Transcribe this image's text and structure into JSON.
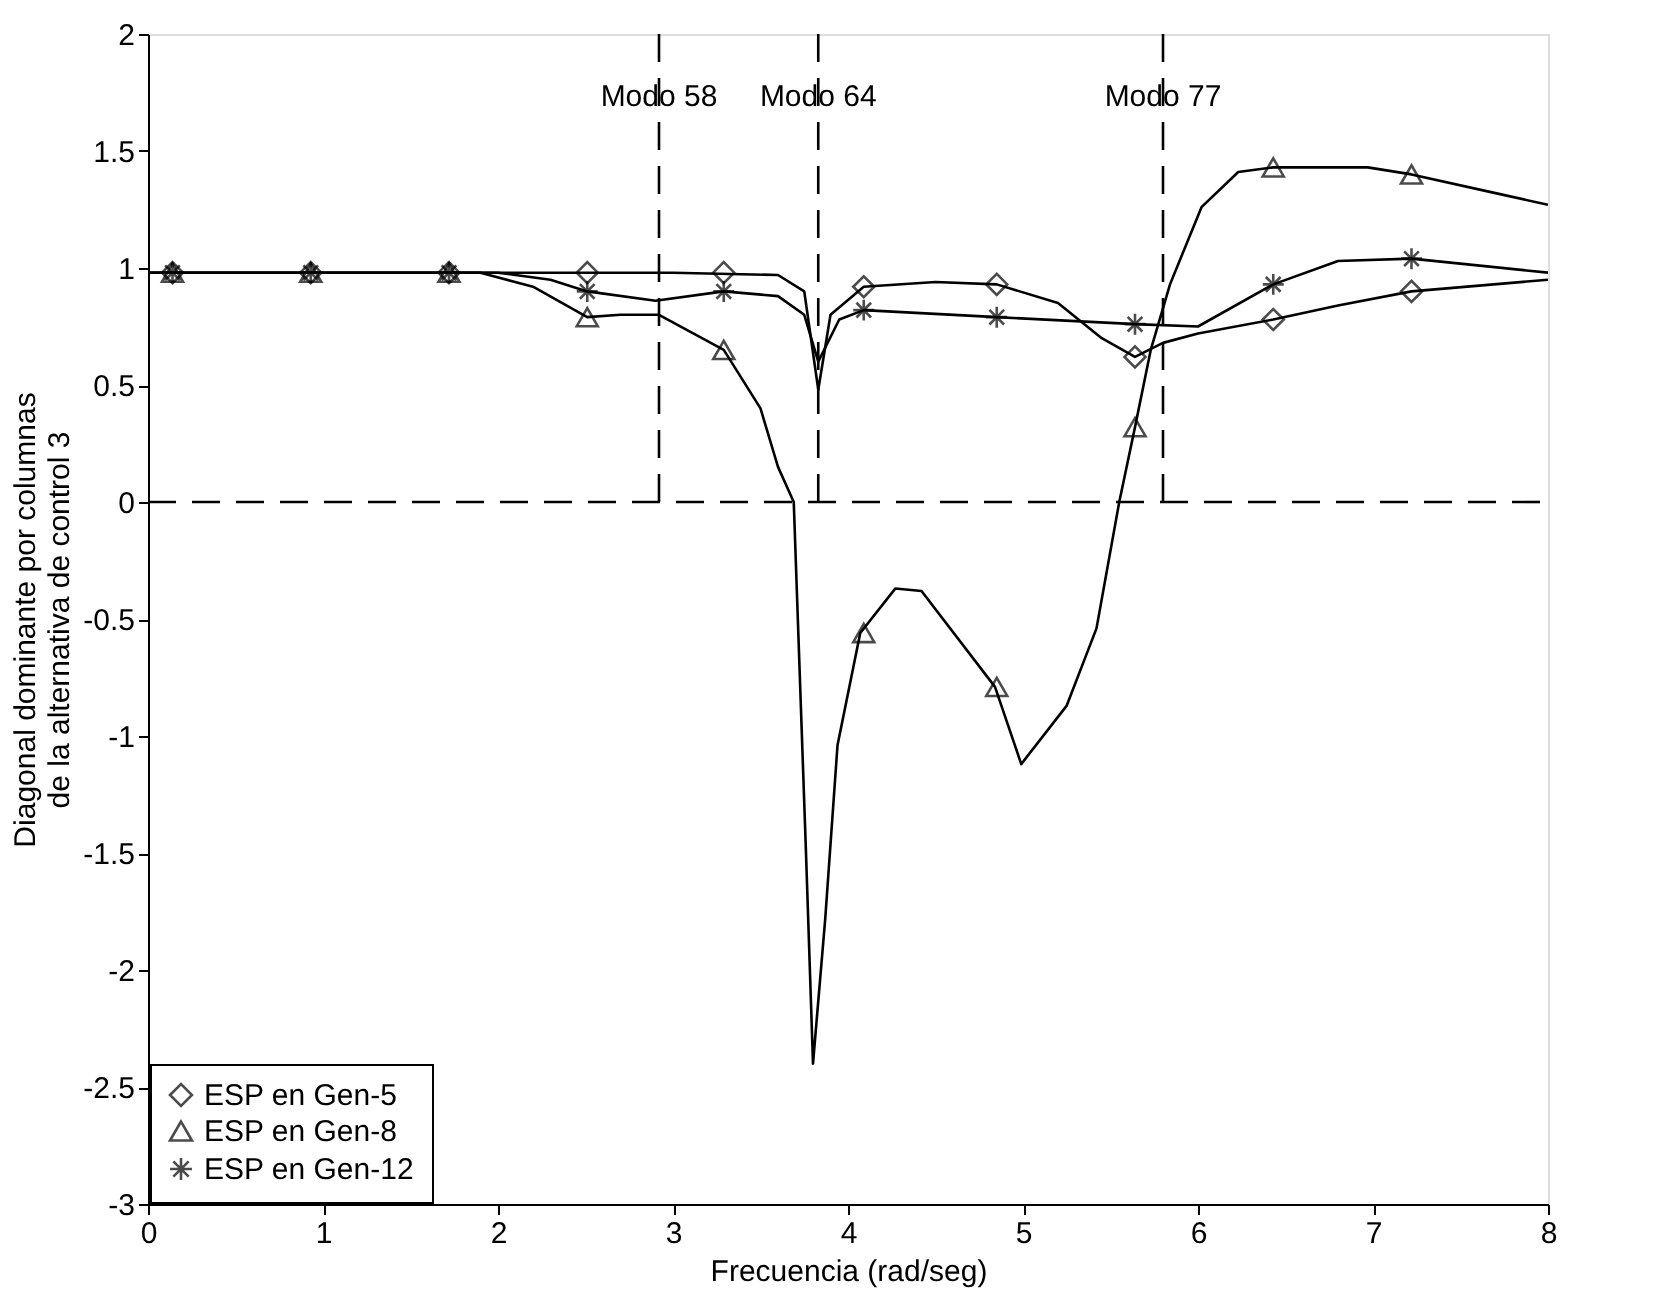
{
  "chart_data": {
    "type": "line",
    "xlabel": "Frecuencia (rad/seg)",
    "ylabel": "Diagonal dominante por columnas\nde la alternativa de control 3",
    "xlim": [
      0,
      8
    ],
    "ylim": [
      -3,
      2
    ],
    "xticks": [
      0,
      1,
      2,
      3,
      4,
      5,
      6,
      7,
      8
    ],
    "yticks": [
      -3,
      -2.5,
      -2,
      -1.5,
      -1,
      -0.5,
      0,
      0.5,
      1,
      1.5,
      2
    ],
    "grid": false,
    "legend": "bottom left",
    "series": [
      {
        "color": "#000000",
        "marker": "none",
        "line_style": "solid",
        "x": [
          0,
          1,
          2,
          3,
          3.6,
          3.75,
          3.83,
          3.9,
          4.09,
          4.5,
          4.85,
          5.2,
          5.45,
          5.64,
          5.8,
          6.0,
          6.43,
          6.8,
          7.22,
          8
        ],
        "values": [
          0.98,
          0.98,
          0.98,
          0.98,
          0.97,
          0.9,
          0.48,
          0.8,
          0.92,
          0.94,
          0.93,
          0.85,
          0.7,
          0.62,
          0.68,
          0.72,
          0.78,
          0.84,
          0.9,
          0.95
        ]
      },
      {
        "color": "#000000",
        "marker": "none",
        "line_style": "solid",
        "x": [
          0,
          1,
          1.9,
          2.2,
          2.51,
          2.7,
          2.92,
          3.29,
          3.5,
          3.6,
          3.69,
          3.76,
          3.8,
          3.87,
          3.94,
          4.07,
          4.27,
          4.42,
          4.84,
          4.99,
          5.25,
          5.42,
          5.55,
          5.64,
          5.73,
          5.84,
          6.02,
          6.23,
          6.43,
          6.97,
          7.22,
          7.7,
          8
        ],
        "values": [
          0.98,
          0.98,
          0.98,
          0.92,
          0.79,
          0.8,
          0.8,
          0.65,
          0.4,
          0.15,
          0,
          -1.5,
          -2.4,
          -1.78,
          -1.04,
          -0.56,
          -0.37,
          -0.38,
          -0.79,
          -1.12,
          -0.87,
          -0.54,
          0,
          0.32,
          0.65,
          0.93,
          1.26,
          1.41,
          1.43,
          1.43,
          1.4,
          1.32,
          1.27
        ]
      },
      {
        "color": "#000000",
        "marker": "none",
        "line_style": "solid",
        "x": [
          0,
          1,
          2,
          2.3,
          2.51,
          2.9,
          3.29,
          3.6,
          3.75,
          3.83,
          3.95,
          4.09,
          4.85,
          5.64,
          6.0,
          6.43,
          6.8,
          7.22,
          8
        ],
        "values": [
          0.98,
          0.98,
          0.98,
          0.95,
          0.9,
          0.86,
          0.9,
          0.88,
          0.8,
          0.6,
          0.78,
          0.82,
          0.79,
          0.76,
          0.75,
          0.93,
          1.03,
          1.04,
          0.98
        ]
      },
      {
        "type": "scatter",
        "name": "ESP en Gen-5",
        "color": "#000000",
        "marker": "diamond",
        "x": [
          0.14,
          0.93,
          1.72,
          2.51,
          3.29,
          4.09,
          4.85,
          5.64,
          6.43,
          7.22
        ],
        "values": [
          0.98,
          0.98,
          0.98,
          0.98,
          0.98,
          0.92,
          0.93,
          0.62,
          0.78,
          0.9
        ]
      },
      {
        "type": "scatter",
        "name": "ESP en Gen-8",
        "color": "#000000",
        "marker": "triangle",
        "x": [
          0.14,
          0.93,
          1.72,
          2.51,
          3.29,
          4.09,
          4.85,
          5.64,
          6.43,
          7.22
        ],
        "values": [
          0.98,
          0.98,
          0.98,
          0.79,
          0.65,
          -0.56,
          -0.79,
          0.32,
          1.43,
          1.4
        ]
      },
      {
        "type": "scatter",
        "name": "ESP en Gen-12",
        "color": "#000000",
        "marker": "cross",
        "x": [
          0.14,
          0.93,
          1.72,
          2.51,
          3.29,
          4.09,
          4.85,
          5.64,
          6.43,
          7.22
        ],
        "values": [
          0.98,
          0.98,
          0.98,
          0.9,
          0.9,
          0.82,
          0.79,
          0.76,
          0.93,
          1.04
        ]
      }
    ],
    "ref_lines": [
      {
        "axis": "y",
        "value": 0,
        "line_style": "dashed"
      },
      {
        "axis": "x",
        "value": 2.92,
        "label": "Modo 58",
        "line_style": "dashed"
      },
      {
        "axis": "x",
        "value": 3.83,
        "label": "Modo 64",
        "line_style": "dashed"
      },
      {
        "axis": "x",
        "value": 5.8,
        "label": "Modo 77",
        "line_style": "dashed"
      }
    ]
  }
}
